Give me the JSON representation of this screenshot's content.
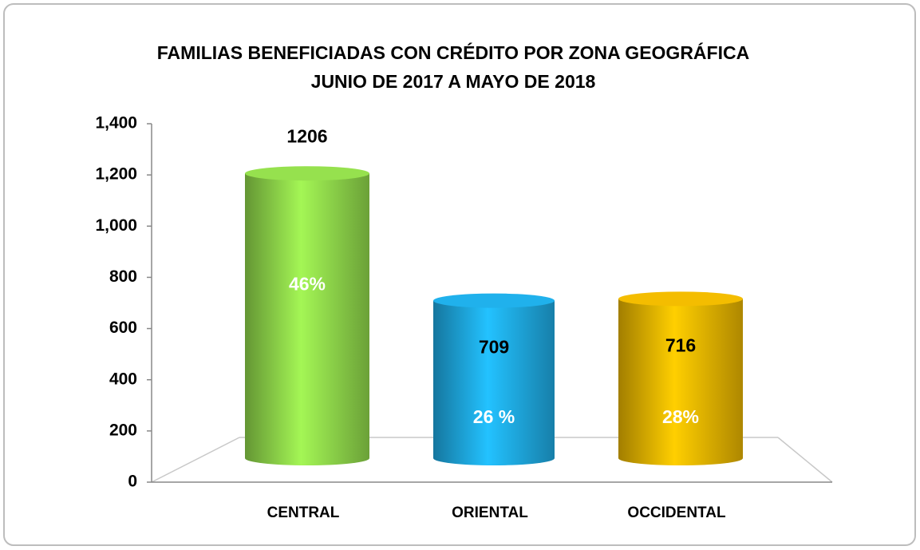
{
  "chart_data": {
    "type": "bar",
    "title": "FAMILIAS BENEFICIADAS CON CRÉDITO POR ZONA GEOGRÁFICA",
    "subtitle": "JUNIO DE 2017 A MAYO DE 2018",
    "categories": [
      "CENTRAL",
      "ORIENTAL",
      "OCCIDENTAL"
    ],
    "values": [
      1206,
      709,
      716
    ],
    "colors": [
      "#8fd64a",
      "#1ea9e1",
      "#e8b400"
    ],
    "annotations": [
      "46%",
      "26 %",
      "28%"
    ],
    "ylim": [
      0,
      1400
    ],
    "yticks": [
      0,
      200,
      400,
      600,
      800,
      {
        "value": 1000,
        "label": "1,000"
      },
      {
        "value": 1200,
        "label": "1,200"
      },
      {
        "value": 1400,
        "label": "1,400"
      }
    ]
  }
}
